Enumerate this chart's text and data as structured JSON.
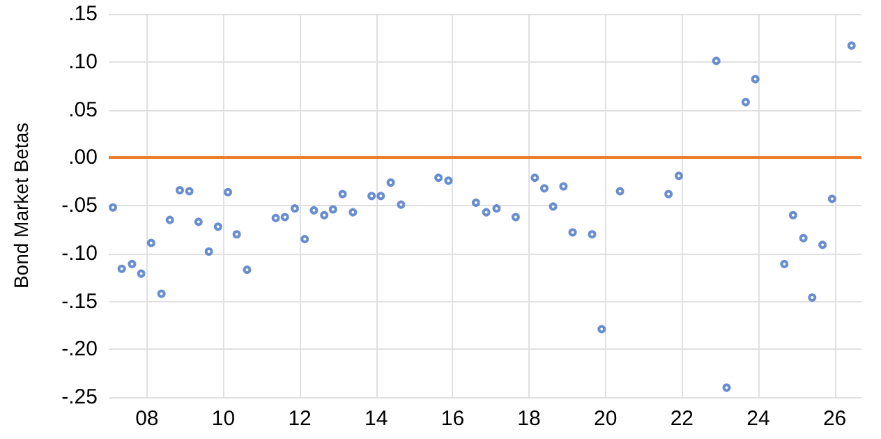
{
  "chart_data": {
    "type": "scatter",
    "ylabel": "Bond Market Betas",
    "marker": "circle",
    "grid": true,
    "x": [
      2007.11,
      2007.34,
      2007.61,
      2007.85,
      2008.11,
      2008.38,
      2008.6,
      2008.86,
      2009.11,
      2009.35,
      2009.62,
      2009.86,
      2010.12,
      2010.35,
      2010.62,
      2011.37,
      2011.61,
      2011.87,
      2012.13,
      2012.37,
      2012.64,
      2012.87,
      2013.12,
      2013.39,
      2013.88,
      2014.12,
      2014.38,
      2014.65,
      2015.63,
      2015.89,
      2016.61,
      2016.88,
      2017.15,
      2017.65,
      2018.15,
      2018.4,
      2018.63,
      2018.9,
      2019.14,
      2019.65,
      2019.9,
      2020.38,
      2021.65,
      2021.92,
      2022.9,
      2023.17,
      2023.67,
      2023.92,
      2024.68,
      2024.91,
      2025.18,
      2025.41,
      2025.68,
      2025.93,
      2026.44
    ],
    "series": [
      {
        "color": "#4472c4",
        "values": [
          -0.052,
          -0.116,
          -0.111,
          -0.121,
          -0.089,
          -0.142,
          -0.065,
          -0.034,
          -0.035,
          -0.067,
          -0.098,
          -0.072,
          -0.036,
          -0.08,
          -0.117,
          -0.063,
          -0.062,
          -0.053,
          -0.085,
          -0.055,
          -0.06,
          -0.054,
          -0.038,
          -0.057,
          -0.04,
          -0.04,
          -0.026,
          -0.049,
          -0.021,
          -0.024,
          -0.047,
          -0.057,
          -0.053,
          -0.062,
          -0.021,
          -0.032,
          -0.051,
          -0.03,
          -0.078,
          -0.08,
          -0.179,
          -0.035,
          -0.038,
          -0.019,
          0.101,
          -0.24,
          0.058,
          0.082,
          -0.111,
          -0.06,
          -0.084,
          -0.146,
          -0.091,
          -0.043,
          0.117
        ]
      }
    ],
    "xlim": [
      2007,
      2026.7
    ],
    "xticks": [
      {
        "value": 2008,
        "label": "08"
      },
      {
        "value": 2010,
        "label": "10"
      },
      {
        "value": 2012,
        "label": "12"
      },
      {
        "value": 2014,
        "label": "14"
      },
      {
        "value": 2016,
        "label": "16"
      },
      {
        "value": 2018,
        "label": "18"
      },
      {
        "value": 2020,
        "label": "20"
      },
      {
        "value": 2022,
        "label": "22"
      },
      {
        "value": 2024,
        "label": "24"
      },
      {
        "value": 2026,
        "label": "26"
      }
    ],
    "ylim": [
      -0.25,
      0.15
    ],
    "yticks": [
      {
        "value": -0.25,
        "label": "-.25"
      },
      {
        "value": -0.2,
        "label": "-.20"
      },
      {
        "value": -0.15,
        "label": "-.15"
      },
      {
        "value": -0.1,
        "label": "-.10"
      },
      {
        "value": -0.05,
        "label": "-.05"
      },
      {
        "value": 0,
        "label": ".00"
      },
      {
        "value": 0.05,
        "label": ".05"
      },
      {
        "value": 0.1,
        "label": ".10"
      },
      {
        "value": 0.15,
        "label": ".15"
      }
    ],
    "ref_lines": [
      {
        "axis": "y",
        "value": 0,
        "color": "#ed7d31"
      }
    ]
  }
}
